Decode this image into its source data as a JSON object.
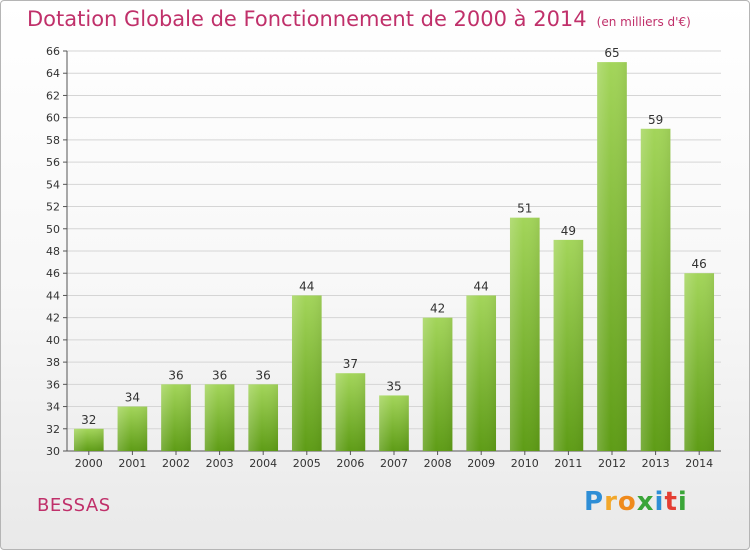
{
  "header": {
    "title": "Dotation Globale de Fonctionnement de 2000 à 2014",
    "subtitle": "(en milliers d'€)"
  },
  "footer": {
    "commune": "BESSAS",
    "logo_text": "Proxiti"
  },
  "colors": {
    "title": "#c0306a",
    "bar_top": "#a3d55a",
    "bar_bottom": "#5e9c16",
    "grid": "#d5d5d5"
  },
  "chart_data": {
    "type": "bar",
    "title": "Dotation Globale de Fonctionnement de 2000 à 2014",
    "subtitle": "(en milliers d'€)",
    "xlabel": "",
    "ylabel": "",
    "categories": [
      "2000",
      "2001",
      "2002",
      "2003",
      "2004",
      "2005",
      "2006",
      "2007",
      "2008",
      "2009",
      "2010",
      "2011",
      "2012",
      "2013",
      "2014"
    ],
    "values": [
      32,
      34,
      36,
      36,
      36,
      44,
      37,
      35,
      42,
      44,
      51,
      49,
      65,
      59,
      46
    ],
    "ylim": [
      30,
      66
    ],
    "yticks": [
      30,
      32,
      34,
      36,
      38,
      40,
      42,
      44,
      46,
      48,
      50,
      52,
      54,
      56,
      58,
      60,
      62,
      64,
      66
    ],
    "grid": true,
    "legend": "none"
  }
}
